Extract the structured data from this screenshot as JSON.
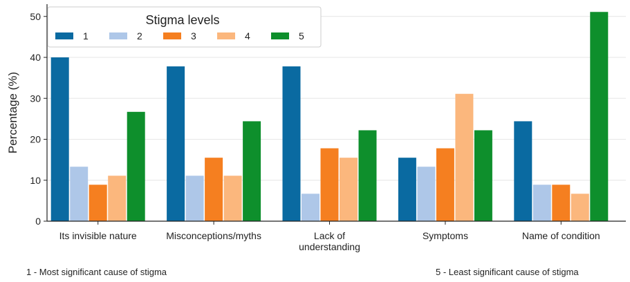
{
  "chart_data": {
    "type": "bar",
    "title": "",
    "xlabel": "",
    "ylabel": "Percentage (%)",
    "ylim": [
      0,
      53
    ],
    "yticks": [
      0,
      10,
      20,
      30,
      40,
      50
    ],
    "grid": "horizontal",
    "categories": [
      "Its invisible nature",
      "Misconceptions/myths",
      "Lack of understanding",
      "Symptoms",
      "Name of condition"
    ],
    "category_lines": [
      [
        "Its invisible nature"
      ],
      [
        "Misconceptions/myths"
      ],
      [
        "Lack of",
        "understanding"
      ],
      [
        "Symptoms"
      ],
      [
        "Name of condition"
      ]
    ],
    "legend": {
      "title": "Stigma levels",
      "placement": "top-left"
    },
    "series": [
      {
        "name": "1",
        "color": "#0a6aa1",
        "values": [
          40.0,
          37.8,
          37.8,
          15.5,
          24.4
        ]
      },
      {
        "name": "2",
        "color": "#aec7e8",
        "values": [
          13.3,
          11.1,
          6.7,
          13.3,
          8.9
        ]
      },
      {
        "name": "3",
        "color": "#f57f20",
        "values": [
          8.9,
          15.5,
          17.8,
          17.8,
          8.9
        ]
      },
      {
        "name": "4",
        "color": "#fbb77d",
        "values": [
          11.1,
          11.1,
          15.5,
          31.1,
          6.7
        ]
      },
      {
        "name": "5",
        "color": "#0e8f2c",
        "values": [
          26.7,
          24.4,
          22.2,
          22.2,
          51.1
        ]
      }
    ]
  },
  "footnotes": {
    "left": "1 - Most significant cause of stigma",
    "right": "5 - Least significant cause of stigma"
  }
}
